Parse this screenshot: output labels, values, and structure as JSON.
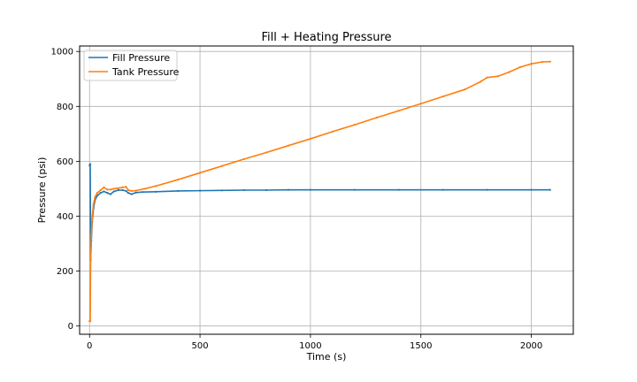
{
  "chart_data": {
    "type": "line",
    "title": "Fill + Heating Pressure",
    "xlabel": "Time (s)",
    "ylabel": "Pressure (psi)",
    "xlim": [
      -45,
      2190
    ],
    "ylim": [
      -30,
      1020
    ],
    "xticks": [
      0,
      500,
      1000,
      1500,
      2000
    ],
    "yticks": [
      0,
      200,
      400,
      600,
      800,
      1000
    ],
    "grid": true,
    "legend_position": "top-left",
    "series": [
      {
        "name": "Fill Pressure",
        "color": "#1f77b4",
        "points": [
          [
            0,
            585
          ],
          [
            3,
            590
          ],
          [
            5,
            240
          ],
          [
            8,
            310
          ],
          [
            12,
            380
          ],
          [
            18,
            430
          ],
          [
            25,
            460
          ],
          [
            35,
            475
          ],
          [
            50,
            485
          ],
          [
            65,
            490
          ],
          [
            80,
            485
          ],
          [
            95,
            480
          ],
          [
            110,
            490
          ],
          [
            130,
            495
          ],
          [
            150,
            495
          ],
          [
            165,
            492
          ],
          [
            175,
            485
          ],
          [
            190,
            480
          ],
          [
            210,
            486
          ],
          [
            240,
            488
          ],
          [
            300,
            489
          ],
          [
            400,
            492
          ],
          [
            500,
            493
          ],
          [
            600,
            494
          ],
          [
            700,
            495
          ],
          [
            800,
            495
          ],
          [
            900,
            496
          ],
          [
            1000,
            496
          ],
          [
            1200,
            496
          ],
          [
            1400,
            496
          ],
          [
            1600,
            496
          ],
          [
            1800,
            496
          ],
          [
            2000,
            496
          ],
          [
            2085,
            496
          ]
        ]
      },
      {
        "name": "Tank Pressure",
        "color": "#ff7f0e",
        "points": [
          [
            0,
            18
          ],
          [
            3,
            18
          ],
          [
            5,
            240
          ],
          [
            8,
            330
          ],
          [
            12,
            400
          ],
          [
            18,
            445
          ],
          [
            25,
            470
          ],
          [
            35,
            485
          ],
          [
            50,
            495
          ],
          [
            65,
            505
          ],
          [
            80,
            497
          ],
          [
            95,
            497
          ],
          [
            110,
            500
          ],
          [
            130,
            502
          ],
          [
            150,
            505
          ],
          [
            165,
            507
          ],
          [
            175,
            495
          ],
          [
            190,
            492
          ],
          [
            210,
            493
          ],
          [
            250,
            500
          ],
          [
            300,
            510
          ],
          [
            400,
            533
          ],
          [
            500,
            558
          ],
          [
            600,
            583
          ],
          [
            700,
            608
          ],
          [
            800,
            632
          ],
          [
            900,
            657
          ],
          [
            1000,
            682
          ],
          [
            1100,
            708
          ],
          [
            1200,
            733
          ],
          [
            1300,
            759
          ],
          [
            1400,
            784
          ],
          [
            1500,
            810
          ],
          [
            1600,
            836
          ],
          [
            1700,
            862
          ],
          [
            1770,
            890
          ],
          [
            1800,
            905
          ],
          [
            1850,
            910
          ],
          [
            1900,
            925
          ],
          [
            1950,
            943
          ],
          [
            2000,
            955
          ],
          [
            2050,
            962
          ],
          [
            2085,
            963
          ]
        ]
      }
    ]
  }
}
